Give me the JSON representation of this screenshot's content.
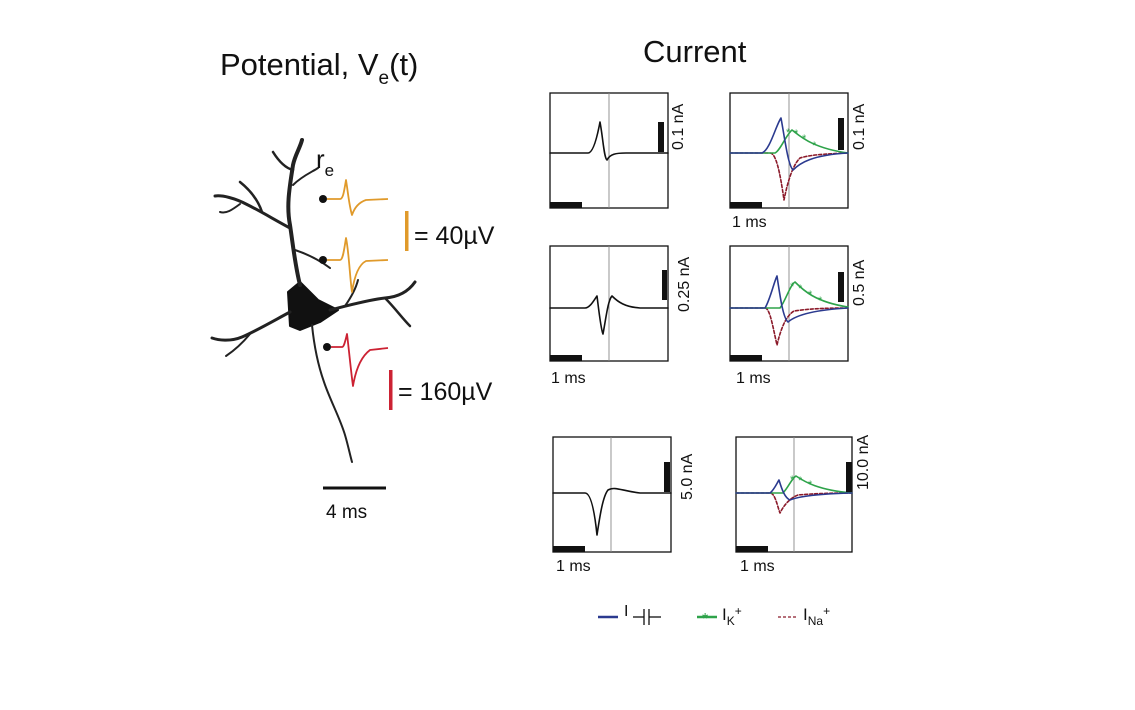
{
  "left": {
    "title": "Potential, V",
    "title_sub": "e",
    "title_tail": "(t)",
    "electrode_label": "r",
    "electrode_sub": "e",
    "scale_orange": "= 40µV",
    "scale_red": "= 160µV",
    "time_scale": "4 ms",
    "colors": {
      "orange": "#e09a2b",
      "red": "#cc2233",
      "neuron": "#222222"
    }
  },
  "right": {
    "title": "Current",
    "panels": [
      {
        "scale": "0.1 nA",
        "time": ""
      },
      {
        "scale": "0.1 nA",
        "time": "1 ms"
      },
      {
        "scale": "0.25 nA",
        "time": "1 ms"
      },
      {
        "scale": "0.5 nA",
        "time": "1 ms"
      },
      {
        "scale": "5.0 nA",
        "time": "1 ms"
      },
      {
        "scale": "10.0 nA",
        "time": "1 ms"
      }
    ],
    "legend": [
      {
        "main": "I",
        "sub": "",
        "glyph": "capacitor-icon",
        "color": "#2b3a8f"
      },
      {
        "main": "I",
        "sub": "K",
        "sup": "+",
        "color": "#2ea34a"
      },
      {
        "main": "I",
        "sub": "Na",
        "sup": "+",
        "color": "#8b1a2a"
      }
    ],
    "colors": {
      "total": "#111111",
      "cap": "#2b3a8f",
      "k": "#2ea34a",
      "na": "#8b1a2a"
    }
  }
}
